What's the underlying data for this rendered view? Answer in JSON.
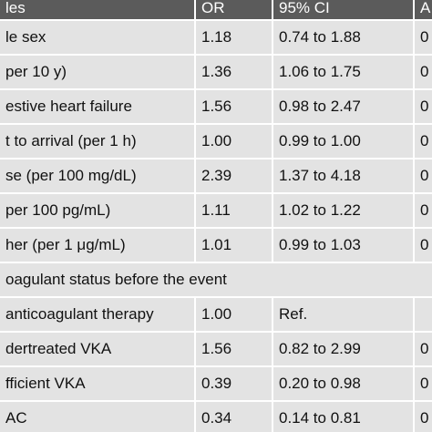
{
  "table": {
    "header": [
      "les",
      "OR",
      "95% CI",
      "A"
    ],
    "rows": [
      {
        "label": "le sex",
        "or": "1.18",
        "ci": "0.74 to 1.88",
        "p": "0"
      },
      {
        "label": "per 10 y)",
        "or": "1.36",
        "ci": "1.06 to 1.75",
        "p": "0"
      },
      {
        "label": "estive heart failure",
        "or": "1.56",
        "ci": "0.98 to 2.47",
        "p": "0"
      },
      {
        "label": "t to arrival (per 1 h)",
        "or": "1.00",
        "ci": "0.99 to 1.00",
        "p": "0"
      },
      {
        "label": "se (per 100 mg/dL)",
        "or": "2.39",
        "ci": "1.37 to 4.18",
        "p": "0"
      },
      {
        "label": "per 100 pg/mL)",
        "or": "1.11",
        "ci": "1.02 to 1.22",
        "p": "0"
      },
      {
        "label": "her (per 1 μg/mL)",
        "or": "1.01",
        "ci": "0.99 to 1.03",
        "p": "0"
      },
      {
        "section": "oagulant status before the event"
      },
      {
        "label": "anticoagulant therapy",
        "or": "1.00",
        "ci": "Ref."
      },
      {
        "label": "dertreated VKA",
        "or": "1.56",
        "ci": "0.82 to 2.99",
        "p": "0"
      },
      {
        "label": "fficient VKA",
        "or": "0.39",
        "ci": "0.20 to 0.98",
        "p": "0"
      },
      {
        "label": "AC",
        "or": "0.34",
        "ci": "0.14 to 0.81",
        "p": "0"
      }
    ]
  }
}
